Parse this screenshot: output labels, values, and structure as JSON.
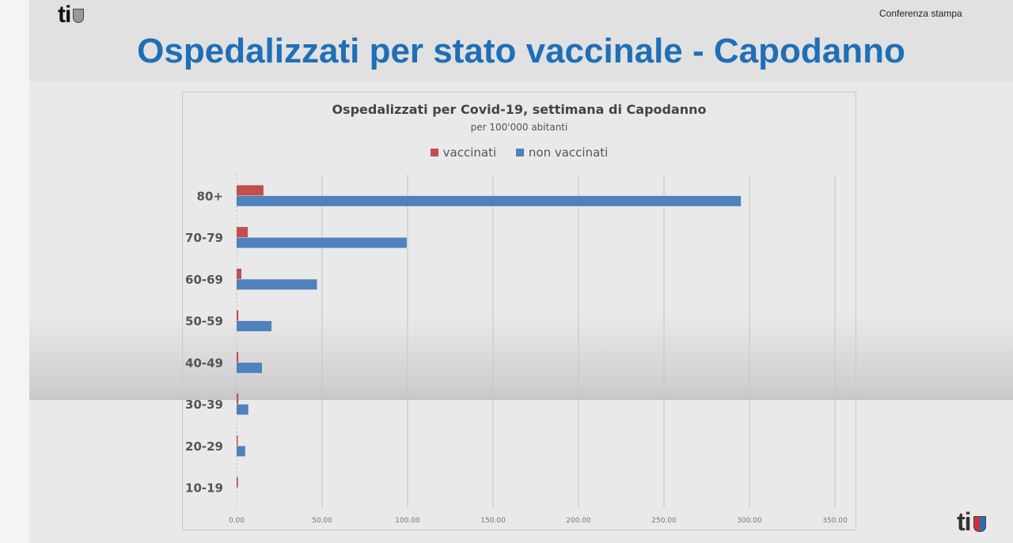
{
  "header": {
    "logo": "ti",
    "press_label": "Conferenza stampa",
    "slide_title": "Ospedalizzati per stato vaccinale - Capodanno"
  },
  "chart_data": {
    "type": "bar",
    "orientation": "horizontal",
    "title": "Ospedalizzati per Covid-19, settimana di Capodanno",
    "subtitle": "per 100'000 abitanti",
    "categories": [
      "80+",
      "70-79",
      "60-69",
      "50-59",
      "40-49",
      "30-39",
      "20-29",
      "10-19"
    ],
    "series": [
      {
        "name": "vaccinati",
        "color": "#c0504d",
        "values": [
          15.7,
          6.5,
          2.8,
          1.0,
          1.0,
          1.0,
          0.5,
          0.8
        ]
      },
      {
        "name": "non vaccinati",
        "color": "#4f81bd",
        "values": [
          295,
          99.5,
          47,
          20.4,
          14.8,
          6.8,
          5.0,
          0
        ]
      }
    ],
    "xlim": [
      0,
      350
    ],
    "xticks": [
      "0.00",
      "50.00",
      "100.00",
      "150.00",
      "200.00",
      "250.00",
      "300.00",
      "350.00"
    ],
    "grid": true,
    "legend_position": "top"
  }
}
